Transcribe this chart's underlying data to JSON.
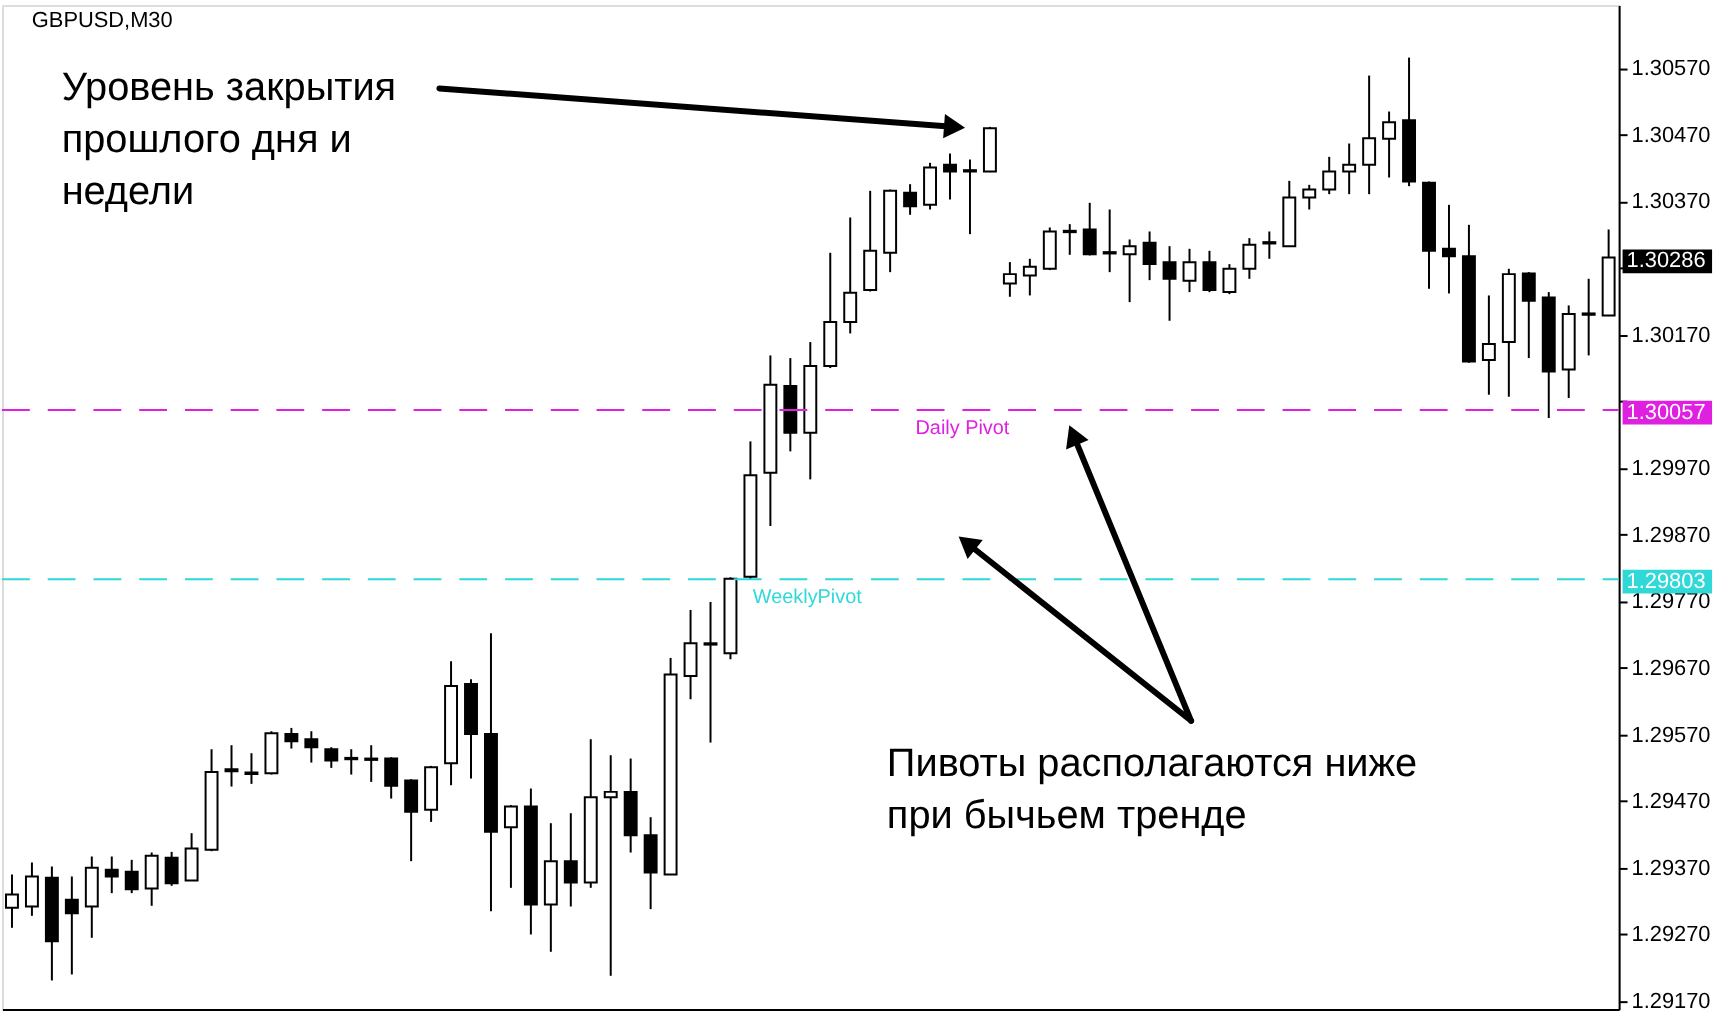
{
  "chart_data": {
    "type": "candlestick",
    "title": "GBPUSD,M30",
    "categories": [
      null,
      null,
      null,
      null,
      null,
      null,
      null,
      null,
      null,
      null,
      null,
      null,
      null,
      null,
      null,
      null,
      null,
      null,
      null,
      null,
      null,
      null,
      null,
      null,
      null,
      null,
      null,
      null,
      null,
      null,
      null,
      null,
      null,
      null,
      null,
      null,
      null,
      null,
      null,
      null,
      null,
      null,
      null,
      null,
      null,
      null,
      null,
      null,
      null,
      null,
      null,
      null,
      null,
      null,
      null,
      null,
      null,
      null,
      null,
      null,
      null,
      null,
      null,
      null,
      null,
      null,
      null,
      null,
      null,
      null,
      null,
      null,
      null,
      null,
      null,
      null,
      null,
      null,
      null,
      null,
      null
    ],
    "ohlc": [
      [
        1.2931,
        1.2936,
        1.2928,
        1.2933
      ],
      [
        1.29312,
        1.29378,
        1.29298,
        1.29357
      ],
      [
        1.29355,
        1.29372,
        1.29201,
        1.2926
      ],
      [
        1.29322,
        1.29357,
        1.2921,
        1.29302
      ],
      [
        1.29312,
        1.29387,
        1.29265,
        1.2937
      ],
      [
        1.29367,
        1.29387,
        1.29332,
        1.29357
      ],
      [
        1.29364,
        1.29382,
        1.29332,
        1.29338
      ],
      [
        1.29339,
        1.29393,
        1.29313,
        1.29388
      ],
      [
        1.29385,
        1.29394,
        1.29343,
        1.29347
      ],
      [
        1.29351,
        1.29422,
        1.29351,
        1.29399
      ],
      [
        1.29397,
        1.29548,
        1.29395,
        1.29514
      ],
      [
        1.29518,
        1.29554,
        1.29492,
        1.29515
      ],
      [
        1.29511,
        1.29542,
        1.29496,
        1.29513
      ],
      [
        1.29512,
        1.29575,
        1.2951,
        1.29572
      ],
      [
        1.29571,
        1.2958,
        1.29549,
        1.2956
      ],
      [
        1.29563,
        1.29575,
        1.29528,
        1.29551
      ],
      [
        1.29548,
        1.29551,
        1.2952,
        1.29531
      ],
      [
        1.29535,
        1.29548,
        1.2951,
        1.29533
      ],
      [
        1.29534,
        1.29554,
        1.29499,
        1.29532
      ],
      [
        1.29534,
        1.29536,
        1.29474,
        1.29493
      ],
      [
        1.29501,
        1.29503,
        1.2938,
        1.29454
      ],
      [
        1.29457,
        1.29523,
        1.29439,
        1.29521
      ],
      [
        1.29527,
        1.2968,
        1.29494,
        1.29643
      ],
      [
        1.29646,
        1.29653,
        1.29504,
        1.29571
      ],
      [
        1.29571,
        1.29722,
        1.29305,
        1.29424
      ],
      [
        1.29431,
        1.29464,
        1.2934,
        1.29462
      ],
      [
        1.29462,
        1.29489,
        1.2927,
        1.29315
      ],
      [
        1.29315,
        1.29437,
        1.29244,
        1.2938
      ],
      [
        1.2938,
        1.29452,
        1.29312,
        1.29348
      ],
      [
        1.29348,
        1.29563,
        1.2934,
        1.29476
      ],
      [
        1.29476,
        1.29539,
        1.29208,
        1.29484
      ],
      [
        1.29484,
        1.29534,
        1.29393,
        1.29419
      ],
      [
        1.29419,
        1.29446,
        1.29308,
        1.29363
      ],
      [
        1.2936,
        1.29685,
        1.2936,
        1.2966
      ],
      [
        1.29658,
        1.29757,
        1.29623,
        1.29707
      ],
      [
        1.29707,
        1.29769,
        1.29558,
        1.29705
      ],
      [
        1.29692,
        1.29806,
        1.29683,
        1.29804
      ],
      [
        1.29807,
        1.3001,
        1.29802,
        1.29959
      ],
      [
        1.29963,
        1.30139,
        1.29883,
        1.30095
      ],
      [
        1.30093,
        1.30135,
        1.29995,
        1.30023
      ],
      [
        1.30023,
        1.30159,
        1.29953,
        1.30123
      ],
      [
        1.30123,
        1.30293,
        1.3012,
        1.30189
      ],
      [
        1.30189,
        1.30346,
        1.30172,
        1.30233
      ],
      [
        1.30237,
        1.30386,
        1.30235,
        1.30296
      ],
      [
        1.30293,
        1.30388,
        1.30264,
        1.30386
      ],
      [
        1.30383,
        1.30396,
        1.3035,
        1.30363
      ],
      [
        1.30365,
        1.30428,
        1.30358,
        1.30421
      ],
      [
        1.30425,
        1.30442,
        1.30373,
        1.30415
      ],
      [
        1.30415,
        1.30433,
        1.30321,
        1.30417
      ],
      [
        1.30415,
        1.30482,
        1.30414,
        1.3048
      ],
      [
        1.30247,
        1.30279,
        1.30227,
        1.30261
      ],
      [
        1.30259,
        1.30284,
        1.30229,
        1.30272
      ],
      [
        1.30269,
        1.30331,
        1.30267,
        1.30325
      ],
      [
        1.30324,
        1.30336,
        1.3029,
        1.30326
      ],
      [
        1.30328,
        1.30368,
        1.30289,
        1.30291
      ],
      [
        1.30292,
        1.30358,
        1.30264,
        1.30294
      ],
      [
        1.30291,
        1.30313,
        1.30219,
        1.30303
      ],
      [
        1.30308,
        1.30325,
        1.30252,
        1.30276
      ],
      [
        1.30279,
        1.30303,
        1.30191,
        1.30254
      ],
      [
        1.30251,
        1.30299,
        1.30234,
        1.30279
      ],
      [
        1.30279,
        1.30296,
        1.30234,
        1.30237
      ],
      [
        1.30234,
        1.30276,
        1.30231,
        1.30269
      ],
      [
        1.30269,
        1.30315,
        1.30254,
        1.30305
      ],
      [
        1.30307,
        1.30325,
        1.30284,
        1.30309
      ],
      [
        1.30303,
        1.30401,
        1.30302,
        1.30376
      ],
      [
        1.30376,
        1.30395,
        1.30358,
        1.30388
      ],
      [
        1.30388,
        1.30437,
        1.30381,
        1.30415
      ],
      [
        1.30415,
        1.30457,
        1.30381,
        1.30425
      ],
      [
        1.30425,
        1.30559,
        1.30381,
        1.30465
      ],
      [
        1.30464,
        1.30505,
        1.30406,
        1.30489
      ],
      [
        1.30492,
        1.30586,
        1.30393,
        1.304
      ],
      [
        1.30398,
        1.304,
        1.30239,
        1.30296
      ],
      [
        1.30299,
        1.30365,
        1.30232,
        1.30288
      ],
      [
        1.30288,
        1.30335,
        1.30128,
        1.3013
      ],
      [
        1.30132,
        1.30229,
        1.3008,
        1.30156
      ],
      [
        1.30159,
        1.30269,
        1.30077,
        1.30261
      ],
      [
        1.30262,
        1.30264,
        1.30135,
        1.30221
      ],
      [
        1.30226,
        1.30234,
        1.30045,
        1.30115
      ],
      [
        1.30118,
        1.30214,
        1.30075,
        1.30201
      ],
      [
        1.302,
        1.30254,
        1.30139,
        1.30202
      ],
      [
        1.30199,
        1.30328,
        1.30198,
        1.30286
      ]
    ],
    "ylim": [
      1.29158,
      1.30665
    ],
    "yticks": [
      {
        "value": 1.2917,
        "label": "1.29170"
      },
      {
        "value": 1.2927,
        "label": "1.29270"
      },
      {
        "value": 1.2937,
        "label": "1.29370"
      },
      {
        "value": 1.2947,
        "label": "1.29470"
      },
      {
        "value": 1.2957,
        "label": "1.29570"
      },
      {
        "value": 1.2967,
        "label": "1.29670"
      },
      {
        "value": 1.2977,
        "label": "1.29770"
      },
      {
        "value": 1.2987,
        "label": "1.29870"
      },
      {
        "value": 1.2997,
        "label": "1.29970"
      },
      {
        "value": 1.3007,
        "label": null
      },
      {
        "value": 1.3017,
        "label": "1.30170"
      },
      {
        "value": 1.3027,
        "label": null
      },
      {
        "value": 1.3037,
        "label": "1.30370"
      },
      {
        "value": 1.3047,
        "label": "1.30470"
      },
      {
        "value": 1.3057,
        "label": "1.30570"
      }
    ],
    "tick_labels": "y",
    "grid": false,
    "legend": false,
    "ref_lines": [
      {
        "axis": "y",
        "value": 1.30057,
        "label": "Daily Pivot",
        "color": "#e020e0",
        "line_style": "dashed"
      },
      {
        "axis": "y",
        "value": 1.29803,
        "label": "WeeklyPivot",
        "color": "#30d8d8",
        "line_style": "dashed"
      }
    ],
    "annotations": [
      "Уровень закрытия\nпрошлого дня и\nнедели",
      "Пивоты располагаются ниже\nпри бычьем тренде",
      "1.30286",
      "1.30057",
      "1.29803"
    ]
  }
}
